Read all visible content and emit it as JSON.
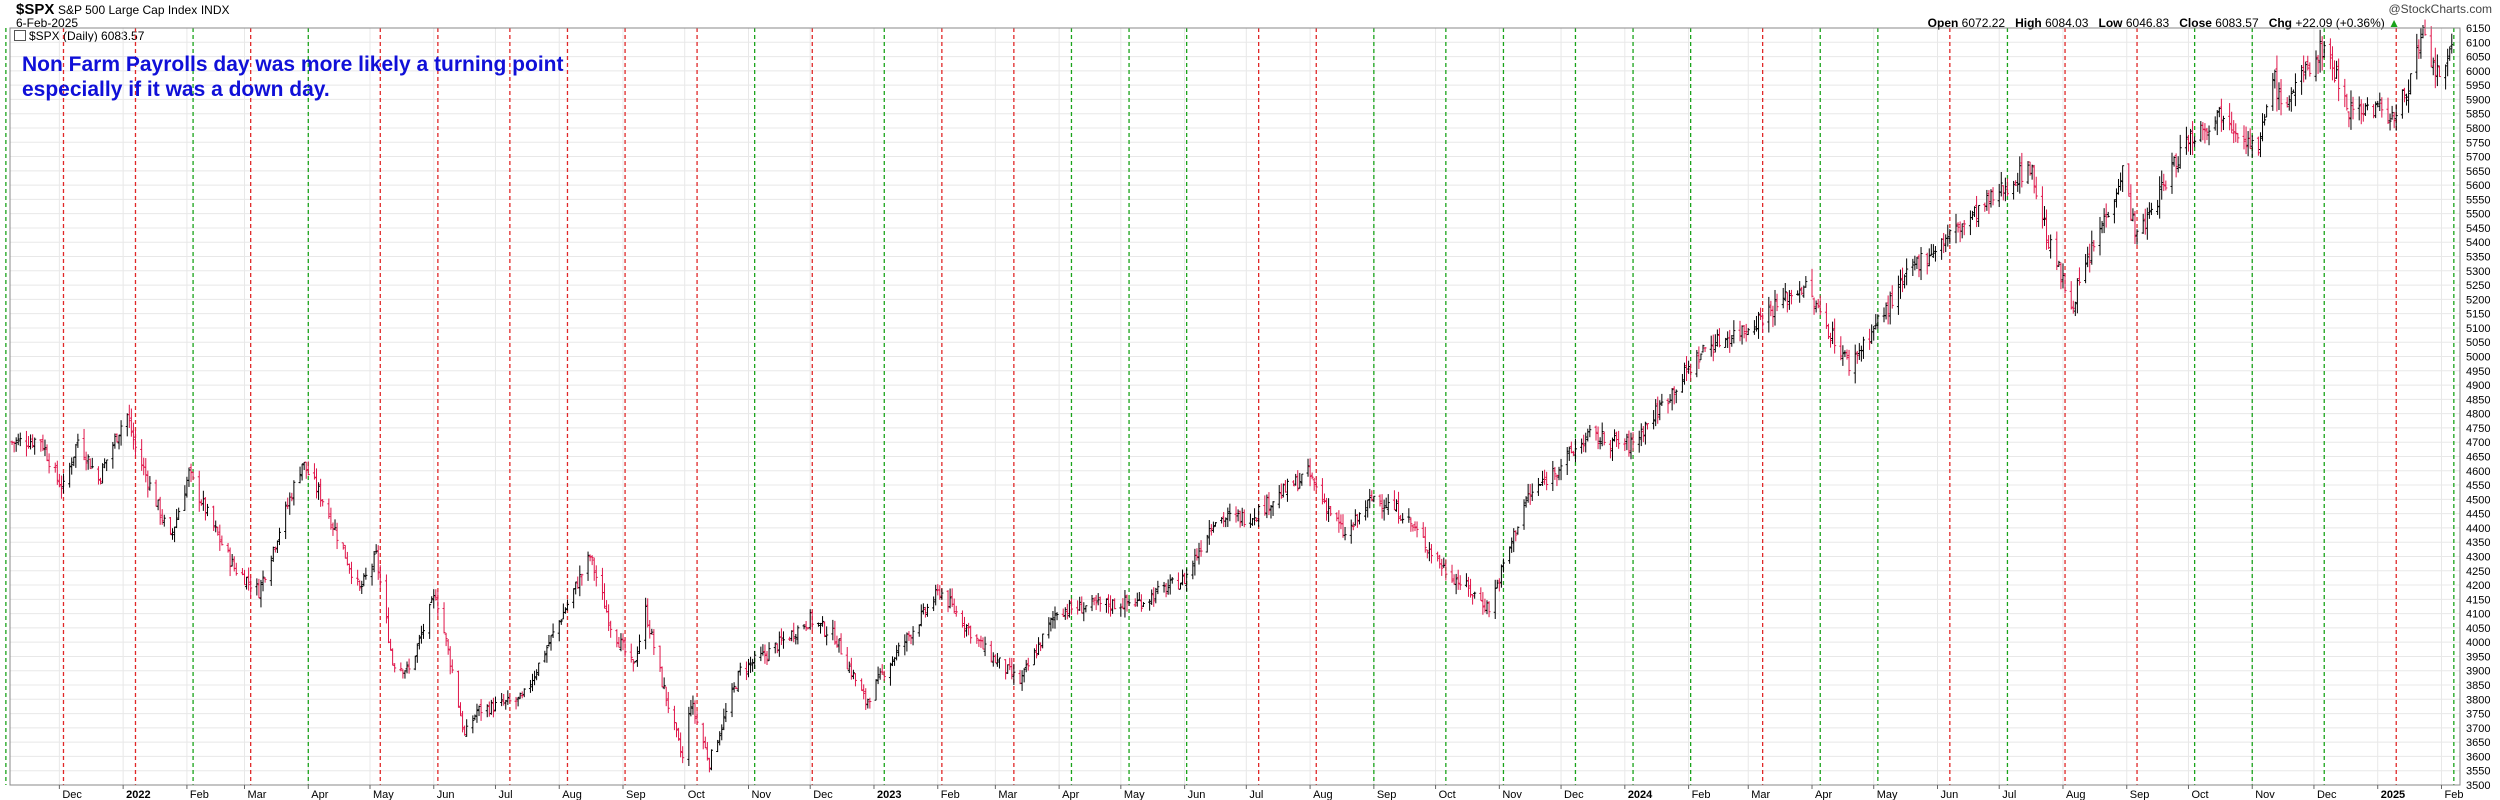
{
  "header": {
    "symbol": "$SPX",
    "name": "S&P 500 Large Cap Index",
    "exchange": "INDX",
    "date": "6-Feb-2025",
    "legend": "$SPX (Daily) 6083.57",
    "copyright": "@StockCharts.com"
  },
  "ohlc": {
    "open_label": "Open",
    "open": "6072.22",
    "high_label": "High",
    "high": "6084.03",
    "low_label": "Low",
    "low": "6046.83",
    "close_label": "Close",
    "close": "6083.57",
    "chg_label": "Chg",
    "chg": "+22.09 (+0.36%)",
    "chg_arrow": "▲"
  },
  "colors": {
    "up_bar": "#000000",
    "down_bar": "#e0154a",
    "green_line": "#1aa31a",
    "red_line": "#e02828",
    "annotation": "#1010d8",
    "grid": "#e8e8e8"
  },
  "chart_data": {
    "type": "ohlc-bar",
    "title": "$SPX S&P 500 Large Cap Index INDX",
    "annotation": [
      "Non Farm Payrolls day was more likely a turning point",
      "especially if it was a down day."
    ],
    "y_axis": {
      "position": "right",
      "ylim": [
        3500,
        6150
      ],
      "tick_labels": [
        3500,
        3550,
        3600,
        3650,
        3700,
        3750,
        3800,
        3850,
        3900,
        3950,
        4000,
        4050,
        4100,
        4150,
        4200,
        4250,
        4300,
        4350,
        4400,
        4450,
        4500,
        4550,
        4600,
        4650,
        4700,
        4750,
        4800,
        4850,
        4900,
        4950,
        5000,
        5050,
        5100,
        5150,
        5200,
        5250,
        5300,
        5350,
        5400,
        5450,
        5500,
        5550,
        5600,
        5650,
        5700,
        5750,
        5800,
        5850,
        5900,
        5950,
        6000,
        6050,
        6100,
        6150
      ]
    },
    "x_axis": {
      "range": [
        "2021-11-07",
        "2025-02-10"
      ],
      "tick_labels": [
        {
          "label": "Dec",
          "date": "2021-12-01",
          "bold": false
        },
        {
          "label": "2022",
          "date": "2022-01-01",
          "bold": true
        },
        {
          "label": "Feb",
          "date": "2022-02-01",
          "bold": false
        },
        {
          "label": "Mar",
          "date": "2022-03-01",
          "bold": false
        },
        {
          "label": "Apr",
          "date": "2022-04-01",
          "bold": false
        },
        {
          "label": "May",
          "date": "2022-05-01",
          "bold": false
        },
        {
          "label": "Jun",
          "date": "2022-06-01",
          "bold": false
        },
        {
          "label": "Jul",
          "date": "2022-07-01",
          "bold": false
        },
        {
          "label": "Aug",
          "date": "2022-08-01",
          "bold": false
        },
        {
          "label": "Sep",
          "date": "2022-09-01",
          "bold": false
        },
        {
          "label": "Oct",
          "date": "2022-10-01",
          "bold": false
        },
        {
          "label": "Nov",
          "date": "2022-11-01",
          "bold": false
        },
        {
          "label": "Dec",
          "date": "2022-12-01",
          "bold": false
        },
        {
          "label": "2023",
          "date": "2023-01-01",
          "bold": true
        },
        {
          "label": "Feb",
          "date": "2023-02-01",
          "bold": false
        },
        {
          "label": "Mar",
          "date": "2023-03-01",
          "bold": false
        },
        {
          "label": "Apr",
          "date": "2023-04-01",
          "bold": false
        },
        {
          "label": "May",
          "date": "2023-05-01",
          "bold": false
        },
        {
          "label": "Jun",
          "date": "2023-06-01",
          "bold": false
        },
        {
          "label": "Jul",
          "date": "2023-07-01",
          "bold": false
        },
        {
          "label": "Aug",
          "date": "2023-08-01",
          "bold": false
        },
        {
          "label": "Sep",
          "date": "2023-09-01",
          "bold": false
        },
        {
          "label": "Oct",
          "date": "2023-10-01",
          "bold": false
        },
        {
          "label": "Nov",
          "date": "2023-11-01",
          "bold": false
        },
        {
          "label": "Dec",
          "date": "2023-12-01",
          "bold": false
        },
        {
          "label": "2024",
          "date": "2024-01-01",
          "bold": true
        },
        {
          "label": "Feb",
          "date": "2024-02-01",
          "bold": false
        },
        {
          "label": "Mar",
          "date": "2024-03-01",
          "bold": false
        },
        {
          "label": "Apr",
          "date": "2024-04-01",
          "bold": false
        },
        {
          "label": "May",
          "date": "2024-05-01",
          "bold": false
        },
        {
          "label": "Jun",
          "date": "2024-06-01",
          "bold": false
        },
        {
          "label": "Jul",
          "date": "2024-07-01",
          "bold": false
        },
        {
          "label": "Aug",
          "date": "2024-08-01",
          "bold": false
        },
        {
          "label": "Sep",
          "date": "2024-09-01",
          "bold": false
        },
        {
          "label": "Oct",
          "date": "2024-10-01",
          "bold": false
        },
        {
          "label": "Nov",
          "date": "2024-11-01",
          "bold": false
        },
        {
          "label": "Dec",
          "date": "2024-12-01",
          "bold": false
        },
        {
          "label": "2025",
          "date": "2025-01-01",
          "bold": true
        },
        {
          "label": "Feb",
          "date": "2025-02-01",
          "bold": false
        }
      ]
    },
    "nfp_days": [
      {
        "date": "2021-11-05",
        "color": "green"
      },
      {
        "date": "2021-12-03",
        "color": "red"
      },
      {
        "date": "2022-01-07",
        "color": "red"
      },
      {
        "date": "2022-02-04",
        "color": "green"
      },
      {
        "date": "2022-03-04",
        "color": "red"
      },
      {
        "date": "2022-04-01",
        "color": "green"
      },
      {
        "date": "2022-05-06",
        "color": "red"
      },
      {
        "date": "2022-06-03",
        "color": "red"
      },
      {
        "date": "2022-07-08",
        "color": "red"
      },
      {
        "date": "2022-08-05",
        "color": "red"
      },
      {
        "date": "2022-09-02",
        "color": "red"
      },
      {
        "date": "2022-10-07",
        "color": "red"
      },
      {
        "date": "2022-11-04",
        "color": "green"
      },
      {
        "date": "2022-12-02",
        "color": "red"
      },
      {
        "date": "2023-01-06",
        "color": "green"
      },
      {
        "date": "2023-02-03",
        "color": "red"
      },
      {
        "date": "2023-03-10",
        "color": "red"
      },
      {
        "date": "2023-04-07",
        "color": "green"
      },
      {
        "date": "2023-05-05",
        "color": "green"
      },
      {
        "date": "2023-06-02",
        "color": "green"
      },
      {
        "date": "2023-07-07",
        "color": "red"
      },
      {
        "date": "2023-08-04",
        "color": "red"
      },
      {
        "date": "2023-09-01",
        "color": "green"
      },
      {
        "date": "2023-10-06",
        "color": "green"
      },
      {
        "date": "2023-11-03",
        "color": "green"
      },
      {
        "date": "2023-12-08",
        "color": "green"
      },
      {
        "date": "2024-01-05",
        "color": "green"
      },
      {
        "date": "2024-02-02",
        "color": "green"
      },
      {
        "date": "2024-03-08",
        "color": "red"
      },
      {
        "date": "2024-04-05",
        "color": "green"
      },
      {
        "date": "2024-05-03",
        "color": "green"
      },
      {
        "date": "2024-06-07",
        "color": "red"
      },
      {
        "date": "2024-07-05",
        "color": "green"
      },
      {
        "date": "2024-08-02",
        "color": "red"
      },
      {
        "date": "2024-09-06",
        "color": "red"
      },
      {
        "date": "2024-10-04",
        "color": "green"
      },
      {
        "date": "2024-11-01",
        "color": "green"
      },
      {
        "date": "2024-12-06",
        "color": "green"
      },
      {
        "date": "2025-01-10",
        "color": "red"
      },
      {
        "date": "2025-02-07",
        "color": "green"
      }
    ],
    "price_path": [
      [
        "2021-11-08",
        4700
      ],
      [
        "2021-11-22",
        4710
      ],
      [
        "2021-11-30",
        4570
      ],
      [
        "2021-12-03",
        4540
      ],
      [
        "2021-12-10",
        4710
      ],
      [
        "2021-12-20",
        4570
      ],
      [
        "2021-12-31",
        4760
      ],
      [
        "2022-01-03",
        4795
      ],
      [
        "2022-01-07",
        4680
      ],
      [
        "2022-01-24",
        4360
      ],
      [
        "2022-02-02",
        4590
      ],
      [
        "2022-02-14",
        4400
      ],
      [
        "2022-02-24",
        4260
      ],
      [
        "2022-03-08",
        4180
      ],
      [
        "2022-03-29",
        4630
      ],
      [
        "2022-04-08",
        4500
      ],
      [
        "2022-04-26",
        4180
      ],
      [
        "2022-05-04",
        4300
      ],
      [
        "2022-05-12",
        3930
      ],
      [
        "2022-05-20",
        3900
      ],
      [
        "2022-06-02",
        4170
      ],
      [
        "2022-06-10",
        3900
      ],
      [
        "2022-06-16",
        3670
      ],
      [
        "2022-06-22",
        3760
      ],
      [
        "2022-07-14",
        3800
      ],
      [
        "2022-08-16",
        4300
      ],
      [
        "2022-08-26",
        4060
      ],
      [
        "2022-09-06",
        3910
      ],
      [
        "2022-09-12",
        4110
      ],
      [
        "2022-09-20",
        3860
      ],
      [
        "2022-09-30",
        3590
      ],
      [
        "2022-10-04",
        3790
      ],
      [
        "2022-10-13",
        3580
      ],
      [
        "2022-10-28",
        3900
      ],
      [
        "2022-11-10",
        3960
      ],
      [
        "2022-12-01",
        4080
      ],
      [
        "2022-12-13",
        4020
      ],
      [
        "2022-12-28",
        3790
      ],
      [
        "2023-01-06",
        3900
      ],
      [
        "2023-02-02",
        4180
      ],
      [
        "2023-02-24",
        3970
      ],
      [
        "2023-03-13",
        3860
      ],
      [
        "2023-03-31",
        4110
      ],
      [
        "2023-04-20",
        4130
      ],
      [
        "2023-05-10",
        4140
      ],
      [
        "2023-06-01",
        4220
      ],
      [
        "2023-06-15",
        4430
      ],
      [
        "2023-07-03",
        4440
      ],
      [
        "2023-07-31",
        4590
      ],
      [
        "2023-08-18",
        4370
      ],
      [
        "2023-09-01",
        4510
      ],
      [
        "2023-09-15",
        4450
      ],
      [
        "2023-10-05",
        4260
      ],
      [
        "2023-10-27",
        4120
      ],
      [
        "2023-11-14",
        4500
      ],
      [
        "2023-12-14",
        4720
      ],
      [
        "2024-01-04",
        4690
      ],
      [
        "2024-02-09",
        5030
      ],
      [
        "2024-02-29",
        5100
      ],
      [
        "2024-03-28",
        5250
      ],
      [
        "2024-04-19",
        4970
      ],
      [
        "2024-05-03",
        5120
      ],
      [
        "2024-05-21",
        5320
      ],
      [
        "2024-06-18",
        5490
      ],
      [
        "2024-07-16",
        5670
      ],
      [
        "2024-07-25",
        5400
      ],
      [
        "2024-08-05",
        5180
      ],
      [
        "2024-08-30",
        5650
      ],
      [
        "2024-09-06",
        5410
      ],
      [
        "2024-09-30",
        5760
      ],
      [
        "2024-10-18",
        5860
      ],
      [
        "2024-11-04",
        5710
      ],
      [
        "2024-11-11",
        6000
      ],
      [
        "2024-11-15",
        5870
      ],
      [
        "2024-12-06",
        6090
      ],
      [
        "2024-12-18",
        5870
      ],
      [
        "2025-01-02",
        5870
      ],
      [
        "2025-01-10",
        5830
      ],
      [
        "2025-01-23",
        6120
      ],
      [
        "2025-01-27",
        6010
      ],
      [
        "2025-02-03",
        5990
      ],
      [
        "2025-02-06",
        6083
      ]
    ]
  }
}
